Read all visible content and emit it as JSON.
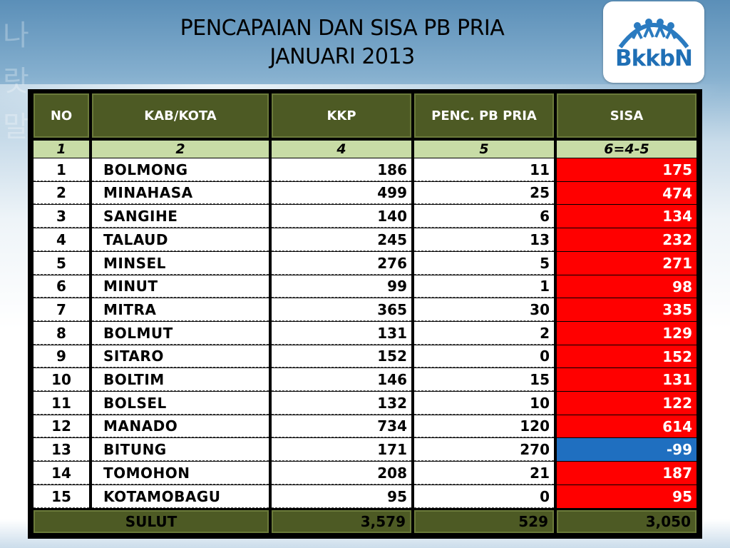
{
  "slide": {
    "title_line1": "PENCAPAIAN DAN SISA PB PRIA",
    "title_line2": "JANUARI 2013",
    "logo_text": "BkkbN"
  },
  "table": {
    "headers": [
      "NO",
      "KAB/KOTA",
      "KKP",
      "PENC. PB PRIA",
      "SISA"
    ],
    "subheaders": [
      "1",
      "2",
      "4",
      "5",
      "6=4-5"
    ],
    "rows": [
      {
        "no": "1",
        "kab": "BOLMONG",
        "kkp": "186",
        "penc": "11",
        "sisa": "175"
      },
      {
        "no": "2",
        "kab": "MINAHASA",
        "kkp": "499",
        "penc": "25",
        "sisa": "474"
      },
      {
        "no": "3",
        "kab": "SANGIHE",
        "kkp": "140",
        "penc": "6",
        "sisa": "134"
      },
      {
        "no": "4",
        "kab": "TALAUD",
        "kkp": "245",
        "penc": "13",
        "sisa": "232"
      },
      {
        "no": "5",
        "kab": "MINSEL",
        "kkp": "276",
        "penc": "5",
        "sisa": "271"
      },
      {
        "no": "6",
        "kab": "MINUT",
        "kkp": "99",
        "penc": "1",
        "sisa": "98"
      },
      {
        "no": "7",
        "kab": "MITRA",
        "kkp": "365",
        "penc": "30",
        "sisa": "335"
      },
      {
        "no": "8",
        "kab": "BOLMUT",
        "kkp": "131",
        "penc": "2",
        "sisa": "129"
      },
      {
        "no": "9",
        "kab": "SITARO",
        "kkp": "152",
        "penc": "0",
        "sisa": "152"
      },
      {
        "no": "10",
        "kab": "BOLTIM",
        "kkp": "146",
        "penc": "15",
        "sisa": "131"
      },
      {
        "no": "11",
        "kab": "BOLSEL",
        "kkp": "132",
        "penc": "10",
        "sisa": "122"
      },
      {
        "no": "12",
        "kab": "MANADO",
        "kkp": "734",
        "penc": "120",
        "sisa": "614"
      },
      {
        "no": "13",
        "kab": "BITUNG",
        "kkp": "171",
        "penc": "270",
        "sisa": "-99"
      },
      {
        "no": "14",
        "kab": "TOMOHON",
        "kkp": "208",
        "penc": "21",
        "sisa": "187"
      },
      {
        "no": "15",
        "kab": "KOTAMOBAGU",
        "kkp": "95",
        "penc": "0",
        "sisa": "95"
      }
    ],
    "total": {
      "label": "SULUT",
      "kkp": "3,579",
      "penc": "529",
      "sisa": "3,050"
    },
    "colors": {
      "header_bg": "#4d5a24",
      "subheader_bg": "#c8dca6",
      "positive_sisa": "#ff0000",
      "negative_sisa": "#1f6fc0"
    }
  }
}
